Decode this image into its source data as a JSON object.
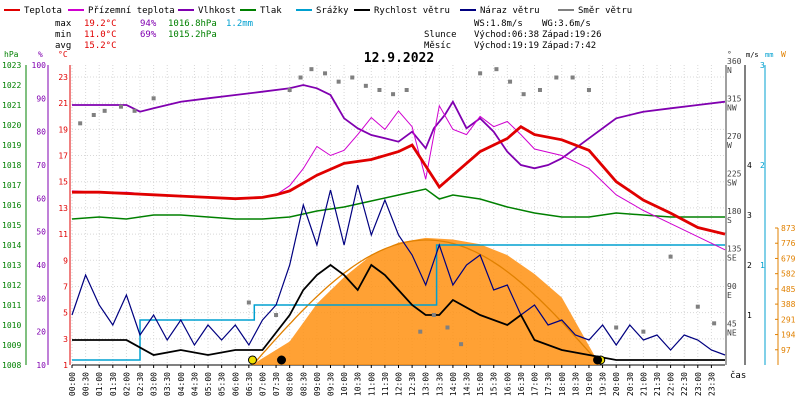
{
  "chart_data": {
    "type": "line",
    "title": "12.9.2022",
    "xlabel": "čas",
    "x_ticks": [
      "00:00",
      "00:30",
      "01:00",
      "01:30",
      "02:00",
      "02:30",
      "03:00",
      "03:30",
      "04:00",
      "04:30",
      "05:00",
      "05:30",
      "06:00",
      "06:30",
      "07:00",
      "07:30",
      "08:00",
      "08:30",
      "09:00",
      "09:30",
      "10:00",
      "10:30",
      "11:00",
      "11:30",
      "12:00",
      "12:30",
      "13:00",
      "13:30",
      "14:00",
      "14:30",
      "15:00",
      "15:30",
      "16:00",
      "16:30",
      "17:00",
      "17:30",
      "18:00",
      "18:30",
      "19:00",
      "19:30",
      "20:00",
      "20:30",
      "21:00",
      "21:30",
      "22:00",
      "22:30",
      "23:00",
      "23:30"
    ],
    "legend": [
      {
        "name": "Teplota",
        "color": "#e00000"
      },
      {
        "name": "Přízemní teplota",
        "color": "#d000d0"
      },
      {
        "name": "Vlhkost",
        "color": "#8000b0"
      },
      {
        "name": "Tlak",
        "color": "#008000"
      },
      {
        "name": "Srážky",
        "color": "#00a0d0"
      },
      {
        "name": "Rychlost větru",
        "color": "#000000"
      },
      {
        "name": "Náraz větru",
        "color": "#000080"
      },
      {
        "name": "Směr větru",
        "color": "#808080"
      }
    ],
    "stats": {
      "max": {
        "label": "max",
        "temp": "19.2°C",
        "hum": "94%",
        "press": "1016.8hPa",
        "rain": "1.2mm"
      },
      "min": {
        "label": "min",
        "temp": "11.0°C",
        "hum": "69%",
        "press": "1015.2hPa"
      },
      "avg": {
        "label": "avg",
        "temp": "15.2°C"
      }
    },
    "info": {
      "ws": "WS:1.8m/s",
      "wg": "WG:3.6m/s",
      "sun_label": "Slunce",
      "sun_rise": "Východ:06:38",
      "sun_set": "Západ:19:26",
      "moon_label": "Měsíc",
      "moon_rise": "Východ:19:19",
      "moon_set": "Západ:7:42"
    },
    "axes": {
      "pressure": {
        "unit": "hPa",
        "ticks": [
          1008,
          1009,
          1010,
          1011,
          1012,
          1013,
          1014,
          1015,
          1016,
          1017,
          1018,
          1019,
          1020,
          1021,
          1022,
          1023
        ],
        "color": "#008000"
      },
      "humidity": {
        "unit": "%",
        "ticks": [
          10,
          20,
          30,
          40,
          50,
          60,
          70,
          80,
          90,
          100
        ],
        "color": "#8000b0"
      },
      "temperature": {
        "unit": "°C",
        "ticks": [
          1,
          3,
          5,
          7,
          9,
          11,
          13,
          15,
          17,
          19,
          21,
          23
        ],
        "color": "#e00000"
      },
      "wind_dir": {
        "unit": "°",
        "ticks": [
          {
            "deg": "45",
            "dir": "NE"
          },
          {
            "deg": "90",
            "dir": "E"
          },
          {
            "deg": "135",
            "dir": "SE"
          },
          {
            "deg": "180",
            "dir": "S"
          },
          {
            "deg": "225",
            "dir": "SW"
          },
          {
            "deg": "270",
            "dir": "W"
          },
          {
            "deg": "315",
            "dir": "NW"
          },
          {
            "deg": "360",
            "dir": "N"
          }
        ],
        "color": "#404040"
      },
      "wind_speed": {
        "unit": "m/s",
        "ticks": [
          1,
          2,
          3,
          4
        ],
        "color": "#000000"
      },
      "rain": {
        "unit": "mm",
        "ticks": [
          1,
          2,
          3
        ],
        "color": "#00a0d0"
      },
      "solar": {
        "unit": "W",
        "ticks": [
          97,
          194,
          291,
          388,
          485,
          582,
          679,
          776,
          873
        ],
        "color": "#e08000"
      }
    },
    "series": [
      {
        "name": "Teplota",
        "unit": "°C",
        "x": [
          0,
          1,
          2,
          3,
          4,
          5,
          6,
          7,
          7.5,
          8,
          9,
          10,
          11,
          12,
          12.5,
          13,
          13.5,
          14,
          15,
          16,
          16.5,
          17,
          18,
          19,
          20,
          21,
          22,
          23,
          24
        ],
        "values": [
          14.2,
          14.2,
          14.1,
          14.0,
          13.9,
          13.8,
          13.7,
          13.8,
          14.0,
          14.3,
          15.5,
          16.4,
          16.7,
          17.3,
          17.8,
          16.2,
          14.6,
          15.5,
          17.3,
          18.3,
          19.2,
          18.6,
          18.2,
          17.4,
          15.0,
          13.6,
          12.6,
          11.5,
          11.0
        ]
      },
      {
        "name": "Přízemní teplota",
        "unit": "°C",
        "x": [
          0,
          1,
          2,
          3,
          4,
          5,
          6,
          7,
          7.5,
          8,
          8.5,
          9,
          9.5,
          10,
          10.5,
          11,
          11.5,
          12,
          12.5,
          13,
          13.5,
          14,
          14.5,
          15,
          15.5,
          16,
          16.5,
          17,
          18,
          19,
          20,
          21,
          22,
          23,
          24
        ],
        "values": [
          14.3,
          14.2,
          14.2,
          14.0,
          13.9,
          13.8,
          13.7,
          13.8,
          14.0,
          14.7,
          16.0,
          17.7,
          17.0,
          17.4,
          18.6,
          19.9,
          19.0,
          20.4,
          19.2,
          15.2,
          20.8,
          19.0,
          18.6,
          20.0,
          19.2,
          19.6,
          18.6,
          17.5,
          17.0,
          16.0,
          14.0,
          12.8,
          11.8,
          10.8,
          9.8
        ]
      },
      {
        "name": "Vlhkost",
        "unit": "%",
        "x": [
          0,
          1,
          2,
          2.5,
          3,
          4,
          5,
          6,
          7,
          8,
          8.5,
          9,
          9.5,
          10,
          10.5,
          11,
          11.5,
          12,
          12.5,
          13,
          13.3,
          13.7,
          14,
          14.5,
          15,
          15.5,
          16,
          16.5,
          17,
          17.5,
          18,
          19,
          20,
          21,
          22,
          23,
          24
        ],
        "values": [
          88,
          88,
          88,
          86,
          87,
          89,
          90,
          91,
          92,
          93,
          94,
          93,
          91,
          84,
          81,
          79,
          78,
          77,
          80,
          75,
          81,
          85,
          89,
          81,
          84,
          80,
          74,
          70,
          69,
          70,
          72,
          78,
          84,
          86,
          87,
          88,
          89
        ]
      },
      {
        "name": "Tlak",
        "unit": "hPa",
        "x": [
          0,
          1,
          2,
          3,
          4,
          5,
          6,
          7,
          8,
          9,
          10,
          11,
          12,
          13,
          13.5,
          14,
          15,
          16,
          17,
          18,
          19,
          20,
          21,
          22,
          23,
          24
        ],
        "values": [
          1015.3,
          1015.4,
          1015.3,
          1015.5,
          1015.5,
          1015.4,
          1015.3,
          1015.3,
          1015.4,
          1015.7,
          1015.9,
          1016.2,
          1016.5,
          1016.8,
          1016.3,
          1016.5,
          1016.3,
          1015.9,
          1015.6,
          1015.4,
          1015.4,
          1015.6,
          1015.5,
          1015.4,
          1015.4,
          1015.4
        ]
      },
      {
        "name": "Srážky",
        "unit": "mm",
        "x": [
          0,
          2.2,
          2.5,
          6.5,
          6.7,
          13.2,
          13.4,
          24
        ],
        "values": [
          0.05,
          0.05,
          0.45,
          0.45,
          0.6,
          0.6,
          1.2,
          1.2
        ]
      },
      {
        "name": "Rychlost větru",
        "unit": "m/s",
        "x": [
          0,
          1,
          2,
          3,
          4,
          5,
          6,
          7,
          8,
          8.5,
          9,
          9.5,
          10,
          10.5,
          11,
          11.5,
          12,
          12.5,
          13,
          13.5,
          14,
          15,
          16,
          16.5,
          17,
          18,
          19,
          20,
          21,
          22,
          23,
          24
        ],
        "values": [
          0.5,
          0.5,
          0.5,
          0.2,
          0.3,
          0.2,
          0.3,
          0.3,
          1.0,
          1.5,
          1.8,
          2.0,
          1.8,
          1.5,
          2.0,
          1.8,
          1.5,
          1.2,
          1.0,
          1.0,
          1.3,
          1.0,
          0.8,
          1.0,
          0.5,
          0.3,
          0.2,
          0.1,
          0.1,
          0.1,
          0.1,
          0.1
        ]
      },
      {
        "name": "Náraz větru",
        "unit": "m/s",
        "x": [
          0,
          0.5,
          1,
          1.5,
          2,
          2.5,
          3,
          3.5,
          4,
          4.5,
          5,
          5.5,
          6,
          6.5,
          7,
          7.5,
          8,
          8.5,
          9,
          9.5,
          10,
          10.5,
          11,
          11.5,
          12,
          12.5,
          13,
          13.5,
          14,
          14.5,
          15,
          15.5,
          16,
          16.5,
          17,
          17.5,
          18,
          18.5,
          19,
          19.5,
          20,
          20.5,
          21,
          21.5,
          22,
          22.5,
          23,
          23.5,
          24
        ],
        "values": [
          1.0,
          1.8,
          1.2,
          0.8,
          1.4,
          0.6,
          1.0,
          0.5,
          0.9,
          0.4,
          0.8,
          0.5,
          0.8,
          0.4,
          0.9,
          1.2,
          2.0,
          3.2,
          2.4,
          3.5,
          2.4,
          3.6,
          2.6,
          3.3,
          2.6,
          2.2,
          1.6,
          2.4,
          1.6,
          2.0,
          2.2,
          1.5,
          1.6,
          1.0,
          1.2,
          0.8,
          0.9,
          0.6,
          0.5,
          0.8,
          0.4,
          0.8,
          0.5,
          0.6,
          0.3,
          0.6,
          0.5,
          0.3,
          0.2
        ]
      },
      {
        "name": "Směr větru",
        "unit": "°",
        "x": [
          0.3,
          0.8,
          1.2,
          1.8,
          2.3,
          3.0,
          6.5,
          7.5,
          8.0,
          8.4,
          8.8,
          9.3,
          9.8,
          10.3,
          10.8,
          11.3,
          11.8,
          12.3,
          12.8,
          13.3,
          13.8,
          14.3,
          15.0,
          15.6,
          16.1,
          16.6,
          17.2,
          17.8,
          18.4,
          19.0,
          20.0,
          21.0,
          22.0,
          23.0,
          23.6
        ],
        "values": [
          290,
          300,
          305,
          310,
          305,
          320,
          75,
          60,
          330,
          345,
          355,
          350,
          340,
          345,
          335,
          330,
          325,
          330,
          40,
          60,
          45,
          25,
          350,
          355,
          340,
          325,
          330,
          345,
          345,
          330,
          45,
          40,
          130,
          70,
          50
        ]
      },
      {
        "name": "Sluneční záření",
        "unit": "W/m²",
        "x": [
          6.6,
          8,
          9,
          10,
          11,
          12,
          13,
          14,
          15,
          16,
          17,
          18,
          19.4
        ],
        "values": [
          0,
          150,
          390,
          560,
          700,
          780,
          810,
          800,
          770,
          700,
          580,
          430,
          0
        ]
      }
    ]
  }
}
